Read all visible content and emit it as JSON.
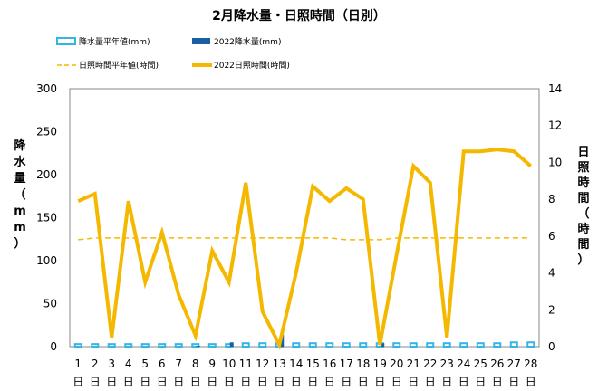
{
  "chart_data": {
    "type": "bar+line",
    "title": "2月降水量・日照時間（日別）",
    "categories": [
      "1",
      "2",
      "3",
      "4",
      "5",
      "6",
      "7",
      "8",
      "9",
      "10",
      "11",
      "12",
      "13",
      "14",
      "15",
      "16",
      "17",
      "18",
      "19",
      "20",
      "21",
      "22",
      "23",
      "24",
      "25",
      "26",
      "27",
      "28"
    ],
    "category_unit": "日",
    "left_axis": {
      "label": "降水量（mm）",
      "range": [
        0,
        300
      ],
      "ticks": [
        0,
        50,
        100,
        150,
        200,
        250,
        300
      ]
    },
    "right_axis": {
      "label": "日照時間（時間）",
      "range": [
        0,
        14
      ],
      "ticks": [
        0,
        2,
        4,
        6,
        8,
        10,
        12,
        14
      ]
    },
    "series": [
      {
        "name": "降水量平年値(mm)",
        "kind": "bar",
        "axis": "left",
        "color": "#33b5e5",
        "fill": "#ffffff",
        "values": [
          3,
          3,
          3,
          3,
          3,
          3,
          3,
          3,
          3,
          3,
          4,
          4,
          4,
          4,
          4,
          4,
          4,
          4,
          4,
          4,
          4,
          4,
          4,
          4,
          4,
          4,
          5,
          5
        ]
      },
      {
        "name": "2022降水量(mm)",
        "kind": "bar",
        "axis": "left",
        "color": "#1a5fa0",
        "values": [
          0,
          0,
          0,
          0,
          0,
          0,
          0,
          1,
          0,
          5,
          0,
          0,
          14,
          0,
          0,
          0,
          0,
          0,
          4,
          0,
          0,
          0,
          0,
          0,
          0,
          0,
          0,
          0
        ]
      },
      {
        "name": "日照時間平年値(時間)",
        "kind": "line",
        "axis": "right",
        "dashed": true,
        "color": "#f5b800",
        "values": [
          5.8,
          5.9,
          5.9,
          5.9,
          5.9,
          5.9,
          5.9,
          5.9,
          5.9,
          5.9,
          5.9,
          5.9,
          5.9,
          5.9,
          5.9,
          5.9,
          5.8,
          5.8,
          5.8,
          5.9,
          5.9,
          5.9,
          5.9,
          5.9,
          5.9,
          5.9,
          5.9,
          5.9
        ]
      },
      {
        "name": "2022日照時間(時間)",
        "kind": "line",
        "axis": "right",
        "color": "#f5b800",
        "values": [
          7.9,
          8.3,
          0.5,
          7.9,
          3.5,
          6.2,
          2.8,
          0.6,
          5.2,
          3.5,
          8.9,
          1.9,
          0.1,
          4.0,
          8.7,
          7.9,
          8.6,
          8.0,
          0.1,
          5.0,
          9.8,
          8.9,
          0.5,
          10.6,
          10.6,
          10.7,
          10.6,
          9.8
        ]
      }
    ],
    "grid": "none",
    "legend_position": "top"
  }
}
